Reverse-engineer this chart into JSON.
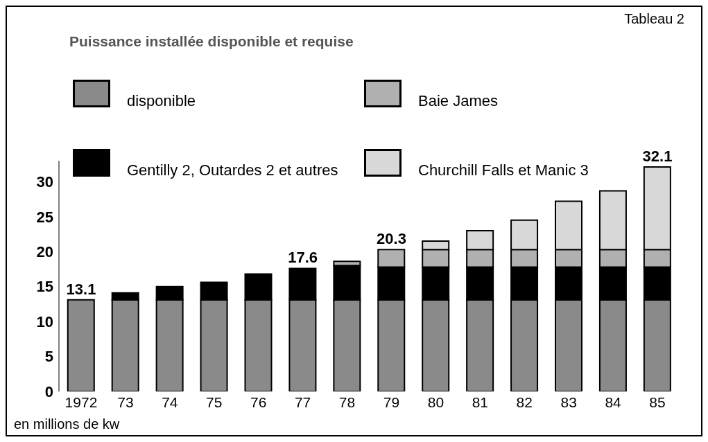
{
  "chart_data": {
    "type": "bar",
    "title": "Puissance installée disponible et requise",
    "annotations": [
      "Tableau 2",
      "en millions de kw"
    ],
    "categories": [
      "1972",
      "73",
      "74",
      "75",
      "76",
      "77",
      "78",
      "79",
      "80",
      "81",
      "82",
      "83",
      "84",
      "85"
    ],
    "stacked": true,
    "series": [
      {
        "name": "disponible",
        "color": "#8a8a8a",
        "values": [
          13.1,
          13.1,
          13.1,
          13.1,
          13.1,
          13.1,
          13.1,
          13.1,
          13.1,
          13.1,
          13.1,
          13.1,
          13.1,
          13.1
        ]
      },
      {
        "name": "Gentilly 2, Outardes 2 et autres",
        "color": "#000000",
        "values": [
          null,
          1.0,
          1.9,
          2.5,
          3.7,
          4.5,
          4.9,
          4.7,
          4.7,
          4.7,
          4.7,
          4.7,
          4.7,
          4.7
        ]
      },
      {
        "name": "Baie James",
        "color": "#b0b0b0",
        "values": [
          null,
          null,
          null,
          null,
          null,
          null,
          0.6,
          2.5,
          2.5,
          2.5,
          2.5,
          2.5,
          2.5,
          2.5
        ]
      },
      {
        "name": "Churchill Falls et Manic 3",
        "color": "#d8d8d8",
        "values": [
          null,
          null,
          null,
          null,
          null,
          null,
          null,
          null,
          1.2,
          2.7,
          4.2,
          6.9,
          8.4,
          11.8
        ]
      }
    ],
    "totals": [
      "13.1",
      null,
      null,
      null,
      null,
      "17.6",
      null,
      "20.3",
      null,
      null,
      null,
      null,
      null,
      "32.1"
    ],
    "ylim": [
      0,
      33
    ],
    "yticks": [
      0,
      5,
      10,
      15,
      20,
      25,
      30
    ],
    "legend": "top left"
  }
}
